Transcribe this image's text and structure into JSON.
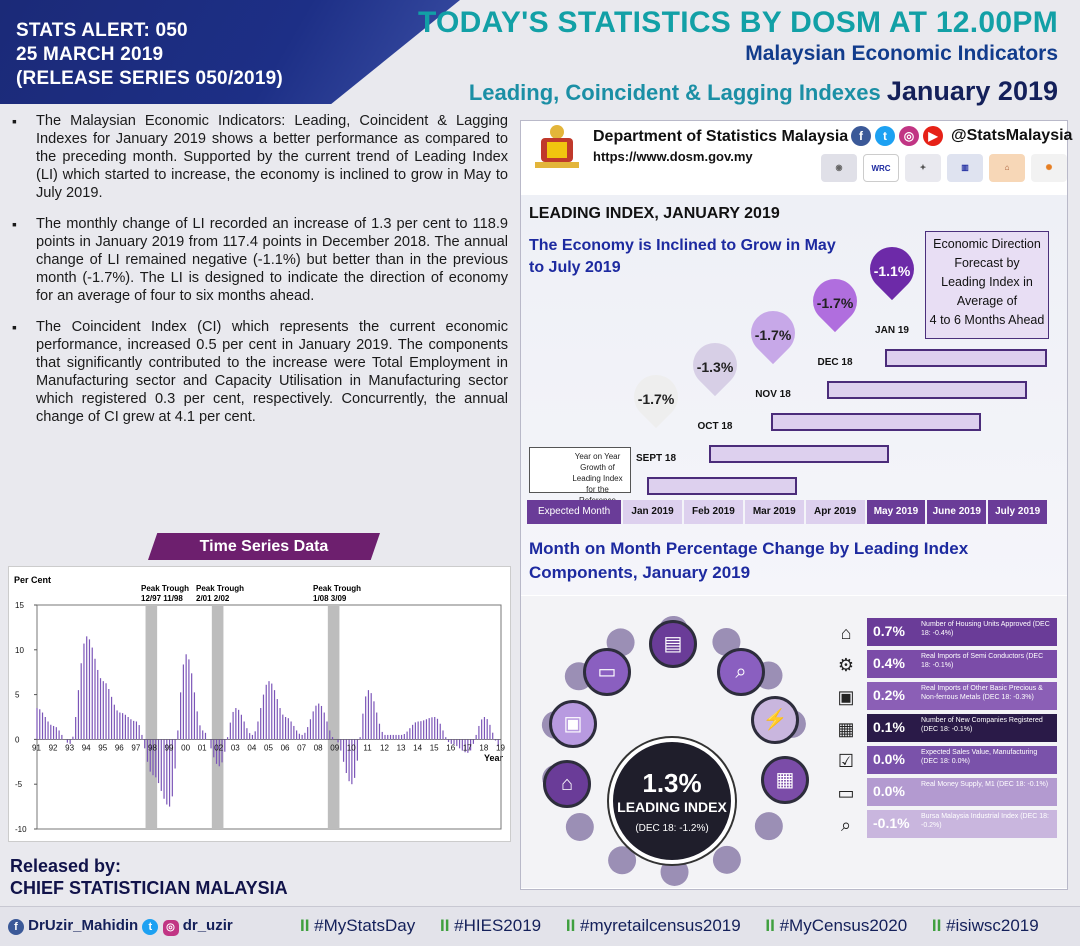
{
  "header": {
    "alert": "STATS ALERT: 050",
    "date": "25 MARCH 2019",
    "series": "(RELEASE SERIES 050/2019)",
    "title": "TODAY'S STATISTICS BY DOSM AT 12.00PM",
    "subtitle": "Malaysian Economic Indicators",
    "subtitle2": "Leading, Coincident & Lagging Indexes",
    "period": "January 2019"
  },
  "bullets": [
    "The Malaysian Economic Indicators: Leading, Coincident & Lagging Indexes for January 2019 shows a better performance as compared to the preceding month. Supported by the current trend of Leading Index (LI) which started to increase, the economy is inclined to grow in May to July 2019.",
    "The monthly change of  LI recorded an increase of 1.3 per cent to 118.9 points in January 2019 from 117.4 points in December 2018. The annual change of LI remained negative (-1.1%) but better than in the previous month (-1.7%). The LI is designed to indicate the direction of economy for an average of four to six months ahead.",
    "The Coincident Index (CI) which represents the current economic performance, increased 0.5 per cent in January 2019. The components that significantly contributed to the increase were Total Employment in Manufacturing sector and Capacity Utilisation in Manufacturing sector which registered 0.3 per cent, respectively. Concurrently, the annual change of CI grew at 4.1 per cent."
  ],
  "time_series": {
    "label": "Time Series Data",
    "ylabel": "Per Cent",
    "xlabel": "Year",
    "peak_trough_labels": [
      {
        "title": "Peak Trough",
        "dates": "12/97  11/98"
      },
      {
        "title": "Peak Trough",
        "dates": "2/01   2/02"
      },
      {
        "title": "Peak Trough",
        "dates": "1/08   3/09"
      }
    ]
  },
  "chart_data": {
    "type": "bar",
    "title": "",
    "xlabel": "Year",
    "ylabel": "Per Cent",
    "ylim": [
      -10,
      15
    ],
    "yticks": [
      15,
      10,
      5,
      0,
      -5,
      -10
    ],
    "categories": [
      "91",
      "92",
      "93",
      "94",
      "95",
      "96",
      "97",
      "98",
      "99",
      "00",
      "01",
      "02",
      "03",
      "04",
      "05",
      "06",
      "07",
      "08",
      "09",
      "10",
      "11",
      "12",
      "13",
      "14",
      "15",
      "16",
      "17",
      "18",
      "19"
    ],
    "values": [
      3.5,
      1.5,
      -0.5,
      11.5,
      6.5,
      3.0,
      2.0,
      -4.0,
      -7.5,
      9.5,
      1.0,
      -3.0,
      3.5,
      0.5,
      6.5,
      2.5,
      0.5,
      4.0,
      0.0,
      -5.0,
      5.5,
      0.5,
      0.5,
      2.0,
      2.5,
      -0.5,
      -1.5,
      2.5,
      -1.0
    ],
    "shaded_periods": [
      [
        "97",
        "98"
      ],
      [
        "01",
        "02"
      ],
      [
        "08",
        "09"
      ]
    ]
  },
  "footer": {
    "released_by": "Released by:",
    "chief": "CHIEF STATISTICIAN MALAYSIA",
    "facebook": "DrUzir_Mahidin",
    "handle": "dr_uzir",
    "tags": [
      "#MyStatsDay",
      "#HIES2019",
      "#myretailcensus2019",
      "#MyCensus2020",
      "#isiwsc2019"
    ]
  },
  "dept": {
    "name": "Department of Statistics Malaysia",
    "url": "https://www.dosm.gov.my",
    "handle": "@StatsMalaysia"
  },
  "leading_index": {
    "title": "LEADING INDEX, JANUARY 2019",
    "subtitle": "The Economy is Inclined to Grow in May to July 2019",
    "forecast": [
      "Economic Direction",
      "Forecast by",
      "Leading Index in",
      "Average of",
      "4 to 6 Months Ahead"
    ],
    "note": "Year on Year Growth of Leading Index for the Reference Month",
    "pins": [
      {
        "value": "-1.7%",
        "month": "SEPT 18",
        "color": "#eeeeee"
      },
      {
        "value": "-1.3%",
        "month": "OCT 18",
        "color": "#d7cfe6"
      },
      {
        "value": "-1.7%",
        "month": "NOV 18",
        "color": "#c7a8e8"
      },
      {
        "value": "-1.7%",
        "month": "DEC 18",
        "color": "#b06ede"
      },
      {
        "value": "-1.1%",
        "month": "JAN 19",
        "color": "#6d2aa8"
      }
    ],
    "axis": [
      "Expected Month",
      "Jan 2019",
      "Feb 2019",
      "Mar 2019",
      "Apr 2019",
      "May 2019",
      "June 2019",
      "July 2019"
    ]
  },
  "components": {
    "title": "Month on Month Percentage Change by Leading Index Components, January 2019",
    "center": {
      "value": "1.3%",
      "label": "LEADING INDEX",
      "sub": "(DEC 18: -1.2%)"
    },
    "items": [
      {
        "icon": "house-icon",
        "glyph": "⌂",
        "pct": "0.7%",
        "desc": "Number of Housing Units Approved (DEC 18: -0.4%)",
        "color": "#6a3c98"
      },
      {
        "icon": "chip-icon",
        "glyph": "⚙",
        "pct": "0.4%",
        "desc": "Real Imports of Semi Conductors (DEC 18: -0.1%)",
        "color": "#7b4ca8"
      },
      {
        "icon": "metal-icon",
        "glyph": "▣",
        "pct": "0.2%",
        "desc": "Real Imports of Other Basic Precious & Non-ferrous Metals (DEC 18: -0.3%)",
        "color": "#8b5fb6"
      },
      {
        "icon": "building-icon",
        "glyph": "▦",
        "pct": "0.1%",
        "desc": "Number of New Companies Registered (DEC 18: -0.1%)",
        "color": "#2a1a48"
      },
      {
        "icon": "sales-icon",
        "glyph": "☑",
        "pct": "0.0%",
        "desc": "Expected Sales Value, Manufacturing (DEC 18: 0.0%)",
        "color": "#7a52aa"
      },
      {
        "icon": "wallet-icon",
        "glyph": "▭",
        "pct": "0.0%",
        "desc": "Real Money Supply, M1 (DEC 18: -0.1%)",
        "color": "#b39ad0"
      },
      {
        "icon": "magnifier-chart-icon",
        "glyph": "⌕",
        "pct": "-0.1%",
        "desc": "Bursa Malaysia Industrial Index (DEC 18: -0.2%)",
        "color": "#c9b6de"
      }
    ]
  }
}
